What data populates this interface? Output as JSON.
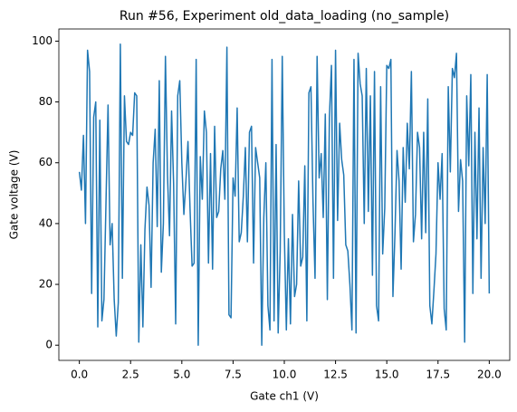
{
  "chart_data": {
    "type": "line",
    "title": "Run #56, Experiment old_data_loading (no_sample)",
    "x_label": "Gate ch1 (V)",
    "y_label": "Gate voltage (V)",
    "x": [
      0,
      0.1,
      0.2,
      0.3,
      0.4,
      0.5,
      0.6,
      0.7,
      0.8,
      0.9,
      1,
      1.1,
      1.2,
      1.3,
      1.4,
      1.5,
      1.6,
      1.7,
      1.8,
      1.9,
      2,
      2.1,
      2.2,
      2.3,
      2.4,
      2.5,
      2.6,
      2.7,
      2.8,
      2.9,
      3,
      3.1,
      3.2,
      3.3,
      3.4,
      3.5,
      3.6,
      3.7,
      3.8,
      3.9,
      4,
      4.1,
      4.2,
      4.3,
      4.4,
      4.5,
      4.6,
      4.7,
      4.8,
      4.9,
      5,
      5.1,
      5.2,
      5.3,
      5.4,
      5.5,
      5.6,
      5.7,
      5.8,
      5.9,
      6,
      6.1,
      6.2,
      6.3,
      6.4,
      6.5,
      6.6,
      6.7,
      6.8,
      6.9,
      7,
      7.1,
      7.2,
      7.3,
      7.4,
      7.5,
      7.6,
      7.7,
      7.8,
      7.9,
      8,
      8.1,
      8.2,
      8.3,
      8.4,
      8.5,
      8.6,
      8.7,
      8.8,
      8.9,
      9,
      9.1,
      9.2,
      9.3,
      9.4,
      9.5,
      9.6,
      9.7,
      9.8,
      9.9,
      10,
      10.1,
      10.2,
      10.3,
      10.4,
      10.5,
      10.6,
      10.7,
      10.8,
      10.9,
      11,
      11.1,
      11.2,
      11.3,
      11.4,
      11.5,
      11.6,
      11.7,
      11.8,
      11.9,
      12,
      12.1,
      12.2,
      12.3,
      12.4,
      12.5,
      12.6,
      12.7,
      12.8,
      12.9,
      13,
      13.1,
      13.2,
      13.3,
      13.4,
      13.5,
      13.6,
      13.7,
      13.8,
      13.9,
      14,
      14.1,
      14.2,
      14.3,
      14.4,
      14.5,
      14.6,
      14.7,
      14.8,
      14.9,
      15,
      15.1,
      15.2,
      15.3,
      15.4,
      15.5,
      15.6,
      15.7,
      15.8,
      15.9,
      16,
      16.1,
      16.2,
      16.3,
      16.4,
      16.5,
      16.6,
      16.7,
      16.8,
      16.9,
      17,
      17.1,
      17.2,
      17.3,
      17.4,
      17.5,
      17.6,
      17.7,
      17.8,
      17.9,
      18,
      18.1,
      18.2,
      18.3,
      18.4,
      18.5,
      18.6,
      18.7,
      18.8,
      18.9,
      19,
      19.1,
      19.2,
      19.3,
      19.4,
      19.5,
      19.6,
      19.7,
      19.8,
      19.9,
      20
    ],
    "series": [
      {
        "name": "Gate voltage",
        "color": "#1f77b4",
        "values": [
          57,
          51,
          69,
          40,
          97,
          90,
          17,
          75,
          80,
          6,
          74,
          8,
          15,
          47,
          79,
          33,
          40,
          15,
          3,
          14,
          99,
          22,
          82,
          67,
          66,
          70,
          69,
          83,
          82,
          1,
          33,
          6,
          38,
          52,
          46,
          19,
          60,
          71,
          39,
          87,
          24,
          40,
          95,
          56,
          36,
          77,
          53,
          7,
          82,
          87,
          60,
          43,
          54,
          67,
          45,
          26,
          27,
          94,
          0,
          62,
          48,
          77,
          70,
          27,
          63,
          25,
          72,
          42,
          44,
          58,
          64,
          48,
          98,
          10,
          9,
          55,
          49,
          78,
          34,
          37,
          49,
          65,
          34,
          70,
          72,
          27,
          65,
          60,
          55,
          0,
          42,
          60,
          13,
          5,
          94,
          8,
          66,
          4,
          31,
          95,
          37,
          5,
          35,
          7,
          43,
          16,
          20,
          54,
          26,
          29,
          59,
          8,
          83,
          85,
          47,
          22,
          95,
          55,
          63,
          42,
          76,
          15,
          75,
          92,
          22,
          97,
          41,
          73,
          61,
          56,
          33,
          31,
          20,
          5,
          94,
          4,
          96,
          86,
          82,
          40,
          91,
          44,
          82,
          23,
          90,
          13,
          8,
          85,
          30,
          45,
          92,
          91,
          94,
          16,
          37,
          64,
          54,
          25,
          65,
          47,
          73,
          58,
          90,
          34,
          43,
          70,
          65,
          35,
          70,
          37,
          81,
          13,
          7,
          18,
          30,
          60,
          48,
          63,
          12,
          5,
          85,
          57,
          91,
          88,
          96,
          44,
          61,
          54,
          1,
          82,
          59,
          89,
          17,
          70,
          35,
          78,
          22,
          65,
          40,
          89,
          17
        ]
      }
    ],
    "xlim": [
      -1,
      21
    ],
    "ylim": [
      -5,
      104
    ],
    "xticks": [
      {
        "value": 0,
        "label": "0.0"
      },
      2.5,
      {
        "value": 5,
        "label": "5.0"
      },
      7.5,
      {
        "value": 10,
        "label": "10.0"
      },
      12.5,
      {
        "value": 15,
        "label": "15.0"
      },
      17.5,
      {
        "value": 20,
        "label": "20.0"
      }
    ],
    "yticks": [
      0,
      20,
      40,
      60,
      80,
      100
    ]
  }
}
